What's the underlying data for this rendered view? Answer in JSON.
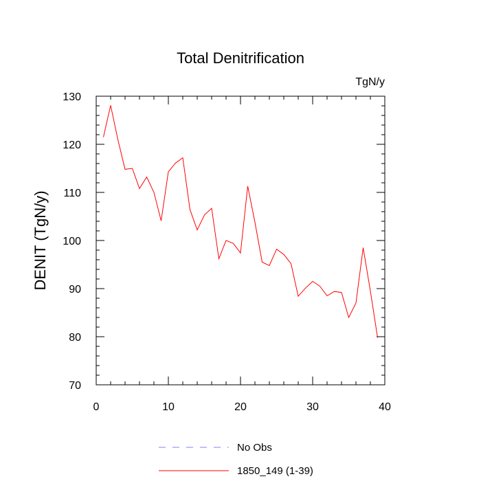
{
  "chart_data": {
    "type": "line",
    "title": "Total Denitrification",
    "units_label": "TgN/y",
    "xlabel": "",
    "ylabel": "DENIT  (TgN/y)",
    "xlim": [
      0,
      40
    ],
    "ylim": [
      70,
      130
    ],
    "x_ticks": [
      0,
      10,
      20,
      30,
      40
    ],
    "y_ticks": [
      70,
      80,
      90,
      100,
      110,
      120,
      130
    ],
    "x_tick_labels": [
      "0",
      "10",
      "20",
      "30",
      "40"
    ],
    "y_tick_labels": [
      "70",
      "80",
      "90",
      "100",
      "110",
      "120",
      "130"
    ],
    "series": [
      {
        "name": "1850_149 (1-39)",
        "color": "#ff0000",
        "dash": "solid",
        "x": [
          1,
          2,
          3,
          4,
          5,
          6,
          7,
          8,
          9,
          10,
          11,
          12,
          13,
          14,
          15,
          16,
          17,
          18,
          19,
          20,
          21,
          22,
          23,
          24,
          25,
          26,
          27,
          28,
          29,
          30,
          31,
          32,
          33,
          34,
          35,
          36,
          37,
          38,
          39
        ],
        "values": [
          121.5,
          128.1,
          121.0,
          114.8,
          115.0,
          110.8,
          113.2,
          110.0,
          104.1,
          114.3,
          116.1,
          117.2,
          106.4,
          102.2,
          105.3,
          106.7,
          96.2,
          100.0,
          99.4,
          97.4,
          111.3,
          103.8,
          95.5,
          94.8,
          98.2,
          97.1,
          95.2,
          88.4,
          90.1,
          91.5,
          90.5,
          88.5,
          89.4,
          89.2,
          84.0,
          87.0,
          98.5,
          89.5,
          79.8
        ]
      }
    ],
    "legend": [
      {
        "label": "No Obs",
        "color": "#7f7fff",
        "dash": "dashed"
      },
      {
        "label": "1850_149 (1-39)",
        "color": "#ff0000",
        "dash": "solid"
      }
    ],
    "legend_position": "bottom"
  }
}
